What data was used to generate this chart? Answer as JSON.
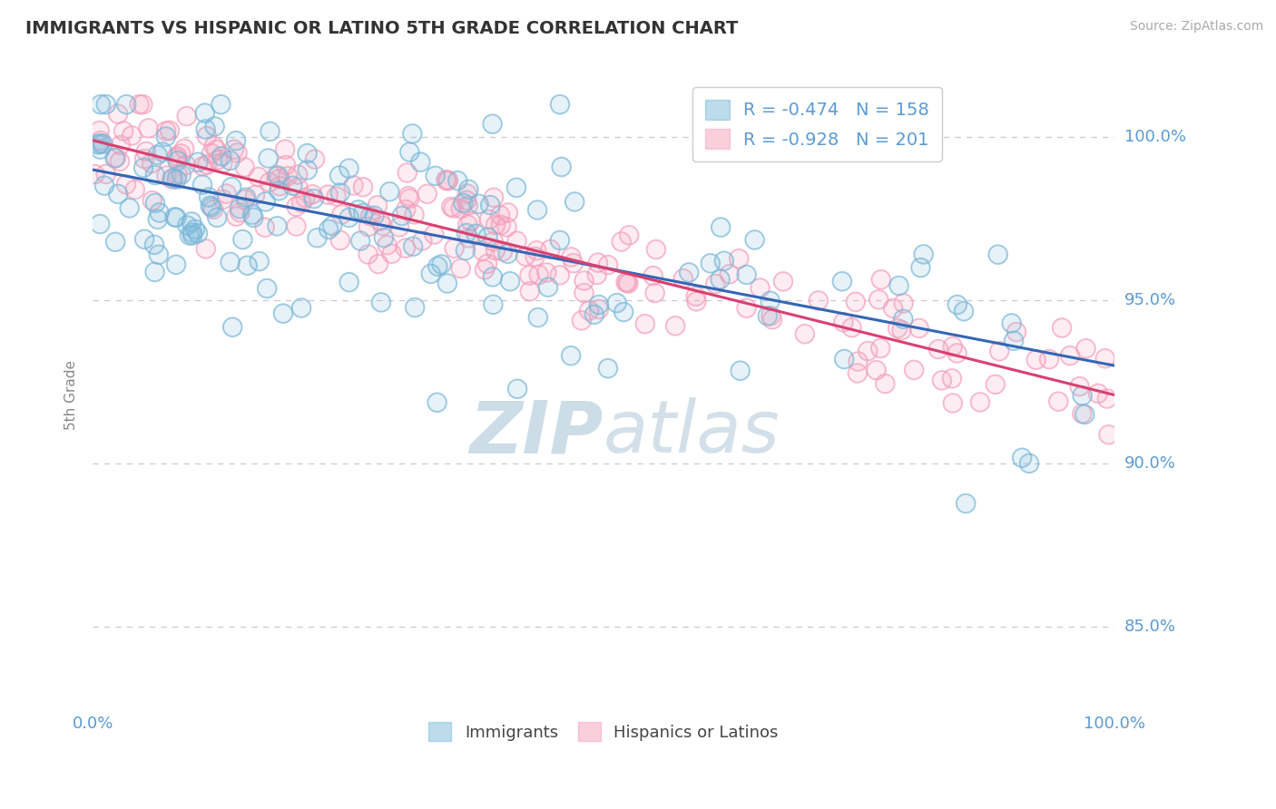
{
  "title": "IMMIGRANTS VS HISPANIC OR LATINO 5TH GRADE CORRELATION CHART",
  "source_text": "Source: ZipAtlas.com",
  "ylabel": "5th Grade",
  "xmin": 0.0,
  "xmax": 1.0,
  "ymin": 0.824,
  "ymax": 1.018,
  "yticks": [
    0.85,
    0.9,
    0.95,
    1.0
  ],
  "ytick_labels": [
    "85.0%",
    "90.0%",
    "95.0%",
    "100.0%"
  ],
  "xticks": [
    0.0,
    1.0
  ],
  "xtick_labels": [
    "0.0%",
    "100.0%"
  ],
  "legend_label_blue": "R = -0.474   N = 158",
  "legend_label_pink": "R = -0.928   N = 201",
  "blue_color": "#7ab8d9",
  "pink_color": "#f4a0bb",
  "blue_line_color": "#3467b5",
  "pink_line_color": "#d94070",
  "axis_label_color": "#5b9bd5",
  "title_color": "#333333",
  "grid_color": "#c8c8d8",
  "watermark_color": "#ccdde8",
  "blue_intercept": 0.99,
  "blue_slope": -0.06,
  "pink_intercept": 0.999,
  "pink_slope": -0.078,
  "blue_N": 158,
  "pink_N": 201
}
